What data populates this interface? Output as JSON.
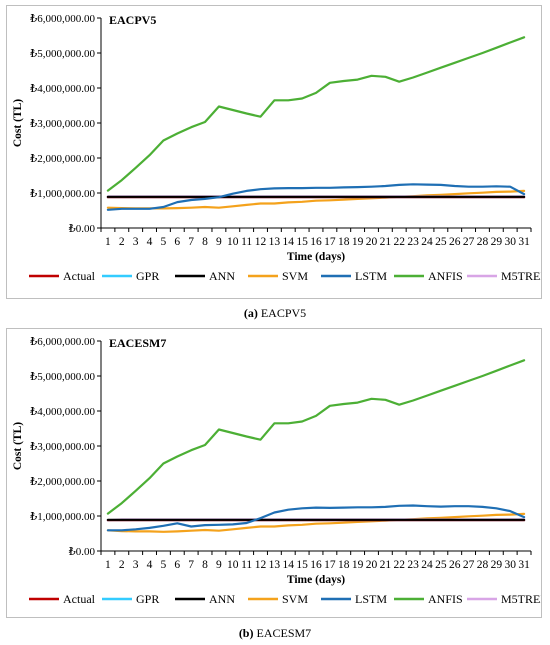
{
  "figure": {
    "captions": [
      {
        "letter": "(a)",
        "text": "EACPV5"
      },
      {
        "letter": "(b)",
        "text": "EACESM7"
      }
    ]
  },
  "colors": {
    "Actual": "#c00000",
    "GPR": "#33ccff",
    "ANN": "#000000",
    "SVM": "#f4a21c",
    "LSTM": "#1f6fb4",
    "ANFIS": "#4caf35",
    "M5TREE": "#d8a5e6"
  },
  "chart_data": [
    {
      "type": "line",
      "title": "EACPV5",
      "xlabel": "Time (days)",
      "ylabel": "Cost (TL)",
      "ylim": [
        0,
        6000000
      ],
      "yticks": [
        "₺0.00",
        "₺1,000,000.00",
        "₺2,000,000.00",
        "₺3,000,000.00",
        "₺4,000,000.00",
        "₺5,000,000.00",
        "₺6,000,000.00"
      ],
      "x": [
        1,
        2,
        3,
        4,
        5,
        6,
        7,
        8,
        9,
        10,
        11,
        12,
        13,
        14,
        15,
        16,
        17,
        18,
        19,
        20,
        21,
        22,
        23,
        24,
        25,
        26,
        27,
        28,
        29,
        30,
        31
      ],
      "legend_position": "bottom",
      "grid": false,
      "series": [
        {
          "name": "Actual",
          "values": [
            880000,
            880000,
            880000,
            880000,
            880000,
            880000,
            880000,
            880000,
            880000,
            880000,
            880000,
            880000,
            880000,
            880000,
            880000,
            880000,
            880000,
            880000,
            880000,
            880000,
            880000,
            880000,
            880000,
            880000,
            880000,
            880000,
            880000,
            880000,
            880000,
            880000,
            880000
          ]
        },
        {
          "name": "GPR",
          "values": [
            880000,
            880000,
            880000,
            880000,
            880000,
            880000,
            880000,
            880000,
            880000,
            880000,
            880000,
            880000,
            880000,
            880000,
            880000,
            880000,
            880000,
            880000,
            880000,
            880000,
            880000,
            880000,
            880000,
            880000,
            880000,
            880000,
            880000,
            880000,
            880000,
            880000,
            880000
          ]
        },
        {
          "name": "ANN",
          "values": [
            890000,
            890000,
            890000,
            890000,
            890000,
            890000,
            890000,
            890000,
            890000,
            890000,
            890000,
            890000,
            890000,
            890000,
            890000,
            890000,
            890000,
            890000,
            890000,
            890000,
            890000,
            890000,
            890000,
            890000,
            890000,
            890000,
            890000,
            890000,
            890000,
            890000,
            890000
          ]
        },
        {
          "name": "SVM",
          "values": [
            580000,
            570000,
            560000,
            560000,
            560000,
            570000,
            580000,
            600000,
            580000,
            620000,
            660000,
            700000,
            700000,
            730000,
            750000,
            780000,
            790000,
            810000,
            830000,
            850000,
            870000,
            890000,
            910000,
            930000,
            950000,
            970000,
            990000,
            1010000,
            1030000,
            1040000,
            1060000
          ]
        },
        {
          "name": "LSTM",
          "values": [
            520000,
            550000,
            550000,
            550000,
            600000,
            740000,
            800000,
            830000,
            880000,
            980000,
            1060000,
            1110000,
            1130000,
            1140000,
            1140000,
            1150000,
            1150000,
            1160000,
            1170000,
            1180000,
            1200000,
            1230000,
            1250000,
            1240000,
            1230000,
            1200000,
            1180000,
            1180000,
            1190000,
            1180000,
            970000
          ]
        },
        {
          "name": "ANFIS",
          "values": [
            1070000,
            1370000,
            1720000,
            2080000,
            2500000,
            2700000,
            2880000,
            3030000,
            3470000,
            3370000,
            3270000,
            3180000,
            3650000,
            3650000,
            3700000,
            3860000,
            4150000,
            4200000,
            4240000,
            4350000,
            4320000,
            4180000,
            4300000,
            4440000,
            4580000,
            4720000,
            4860000,
            5000000,
            5150000,
            5300000,
            5450000
          ]
        },
        {
          "name": "M5TREE",
          "values": [
            900000,
            900000,
            900000,
            900000,
            900000,
            900000,
            900000,
            900000,
            900000,
            900000,
            900000,
            900000,
            900000,
            900000,
            900000,
            900000,
            900000,
            900000,
            900000,
            900000,
            900000,
            900000,
            900000,
            900000,
            900000,
            900000,
            900000,
            900000,
            900000,
            900000,
            900000
          ]
        }
      ]
    },
    {
      "type": "line",
      "title": "EACESM7",
      "xlabel": "Time (days)",
      "ylabel": "Cost (TL)",
      "ylim": [
        0,
        6000000
      ],
      "yticks": [
        "₺0.00",
        "₺1,000,000.00",
        "₺2,000,000.00",
        "₺3,000,000.00",
        "₺4,000,000.00",
        "₺5,000,000.00",
        "₺6,000,000.00"
      ],
      "x": [
        1,
        2,
        3,
        4,
        5,
        6,
        7,
        8,
        9,
        10,
        11,
        12,
        13,
        14,
        15,
        16,
        17,
        18,
        19,
        20,
        21,
        22,
        23,
        24,
        25,
        26,
        27,
        28,
        29,
        30,
        31
      ],
      "legend_position": "bottom",
      "grid": false,
      "series": [
        {
          "name": "Actual",
          "values": [
            880000,
            880000,
            880000,
            880000,
            880000,
            880000,
            880000,
            880000,
            880000,
            880000,
            880000,
            880000,
            880000,
            880000,
            880000,
            880000,
            880000,
            880000,
            880000,
            880000,
            880000,
            880000,
            880000,
            880000,
            880000,
            880000,
            880000,
            880000,
            880000,
            880000,
            880000
          ]
        },
        {
          "name": "GPR",
          "values": [
            880000,
            880000,
            880000,
            880000,
            880000,
            880000,
            880000,
            880000,
            880000,
            880000,
            880000,
            880000,
            880000,
            880000,
            880000,
            880000,
            880000,
            880000,
            880000,
            880000,
            880000,
            880000,
            880000,
            880000,
            880000,
            880000,
            880000,
            880000,
            880000,
            880000,
            880000
          ]
        },
        {
          "name": "ANN",
          "values": [
            890000,
            890000,
            890000,
            890000,
            890000,
            890000,
            890000,
            890000,
            890000,
            890000,
            890000,
            890000,
            890000,
            890000,
            890000,
            890000,
            890000,
            890000,
            890000,
            890000,
            890000,
            890000,
            890000,
            890000,
            890000,
            890000,
            890000,
            890000,
            890000,
            890000,
            890000
          ]
        },
        {
          "name": "SVM",
          "values": [
            590000,
            570000,
            560000,
            560000,
            550000,
            560000,
            580000,
            600000,
            580000,
            620000,
            660000,
            700000,
            700000,
            730000,
            750000,
            780000,
            790000,
            810000,
            830000,
            850000,
            870000,
            890000,
            910000,
            930000,
            950000,
            970000,
            990000,
            1010000,
            1030000,
            1040000,
            1060000
          ]
        },
        {
          "name": "LSTM",
          "values": [
            590000,
            590000,
            620000,
            660000,
            720000,
            790000,
            700000,
            740000,
            750000,
            760000,
            800000,
            940000,
            1100000,
            1180000,
            1220000,
            1240000,
            1230000,
            1240000,
            1250000,
            1250000,
            1260000,
            1290000,
            1300000,
            1280000,
            1270000,
            1280000,
            1280000,
            1260000,
            1220000,
            1140000,
            970000
          ]
        },
        {
          "name": "ANFIS",
          "values": [
            1070000,
            1370000,
            1720000,
            2080000,
            2500000,
            2700000,
            2880000,
            3030000,
            3470000,
            3370000,
            3270000,
            3180000,
            3650000,
            3650000,
            3700000,
            3860000,
            4150000,
            4200000,
            4240000,
            4350000,
            4320000,
            4180000,
            4300000,
            4440000,
            4580000,
            4720000,
            4860000,
            5000000,
            5150000,
            5300000,
            5450000
          ]
        },
        {
          "name": "M5TREE",
          "values": [
            880000,
            900000,
            900000,
            900000,
            900000,
            900000,
            900000,
            900000,
            900000,
            900000,
            900000,
            900000,
            900000,
            900000,
            900000,
            900000,
            900000,
            900000,
            900000,
            900000,
            900000,
            900000,
            900000,
            900000,
            900000,
            900000,
            900000,
            900000,
            900000,
            900000,
            900000
          ]
        }
      ]
    }
  ]
}
